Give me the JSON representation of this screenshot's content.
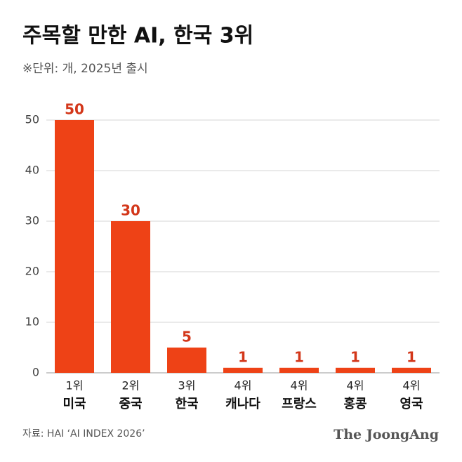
{
  "chart_data": {
    "type": "bar",
    "title": "주목할 만한 AI, 한국 3위",
    "subtitle": "※단위: 개, 2025년 출시",
    "ranks": [
      "1위",
      "2위",
      "3위",
      "4위",
      "4위",
      "4위",
      "4위"
    ],
    "categories": [
      "미국",
      "중국",
      "한국",
      "캐나다",
      "프랑스",
      "홍콩",
      "영국"
    ],
    "values": [
      50,
      30,
      5,
      1,
      1,
      1,
      1
    ],
    "color": "#ee4216",
    "ylim": [
      0,
      50
    ],
    "yticks": [
      0,
      10,
      20,
      30,
      40,
      50
    ],
    "grid": true,
    "source": "자료: HAI ‘AI INDEX 2026’",
    "brand": "The JoongAng"
  }
}
